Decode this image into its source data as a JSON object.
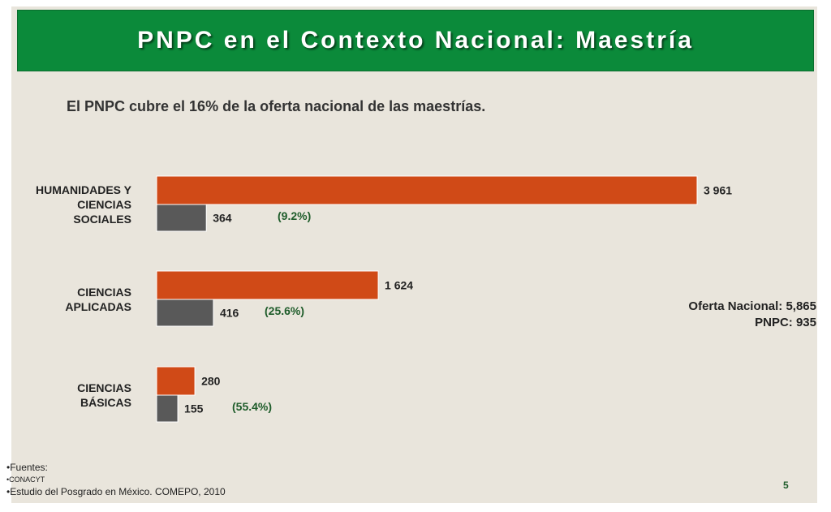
{
  "title": "PNPC en el Contexto Nacional: Maestría",
  "subtitle": "El PNPC cubre el 16% de la oferta nacional de las maestrías.",
  "totals": {
    "national": "Oferta Nacional:  5,865",
    "pnpc": "PNPC:  935"
  },
  "sources": {
    "heading": "•Fuentes:",
    "item1": "•CONACYT",
    "item2": "•Estudio del Posgrado en México. COMEPO, 2010"
  },
  "page_number": "5",
  "chart_data": {
    "type": "bar",
    "orientation": "horizontal",
    "categories": [
      [
        "HUMANIDADES Y",
        "CIENCIAS",
        "SOCIALES"
      ],
      [
        "CIENCIAS",
        "APLICADAS"
      ],
      [
        "CIENCIAS",
        "BÁSICAS"
      ]
    ],
    "series": [
      {
        "values": [
          3961,
          1624,
          280
        ],
        "labels": [
          "3 961",
          "1 624",
          "280"
        ],
        "color": "#d04a17"
      },
      {
        "values": [
          364,
          416,
          155
        ],
        "labels": [
          "364",
          "416",
          "155"
        ],
        "color": "#595959"
      }
    ],
    "percentages": [
      "(9.2%)",
      "(25.6%)",
      "(55.4%)"
    ],
    "xlim": [
      0,
      3961
    ],
    "grid": false,
    "legend": "none"
  }
}
